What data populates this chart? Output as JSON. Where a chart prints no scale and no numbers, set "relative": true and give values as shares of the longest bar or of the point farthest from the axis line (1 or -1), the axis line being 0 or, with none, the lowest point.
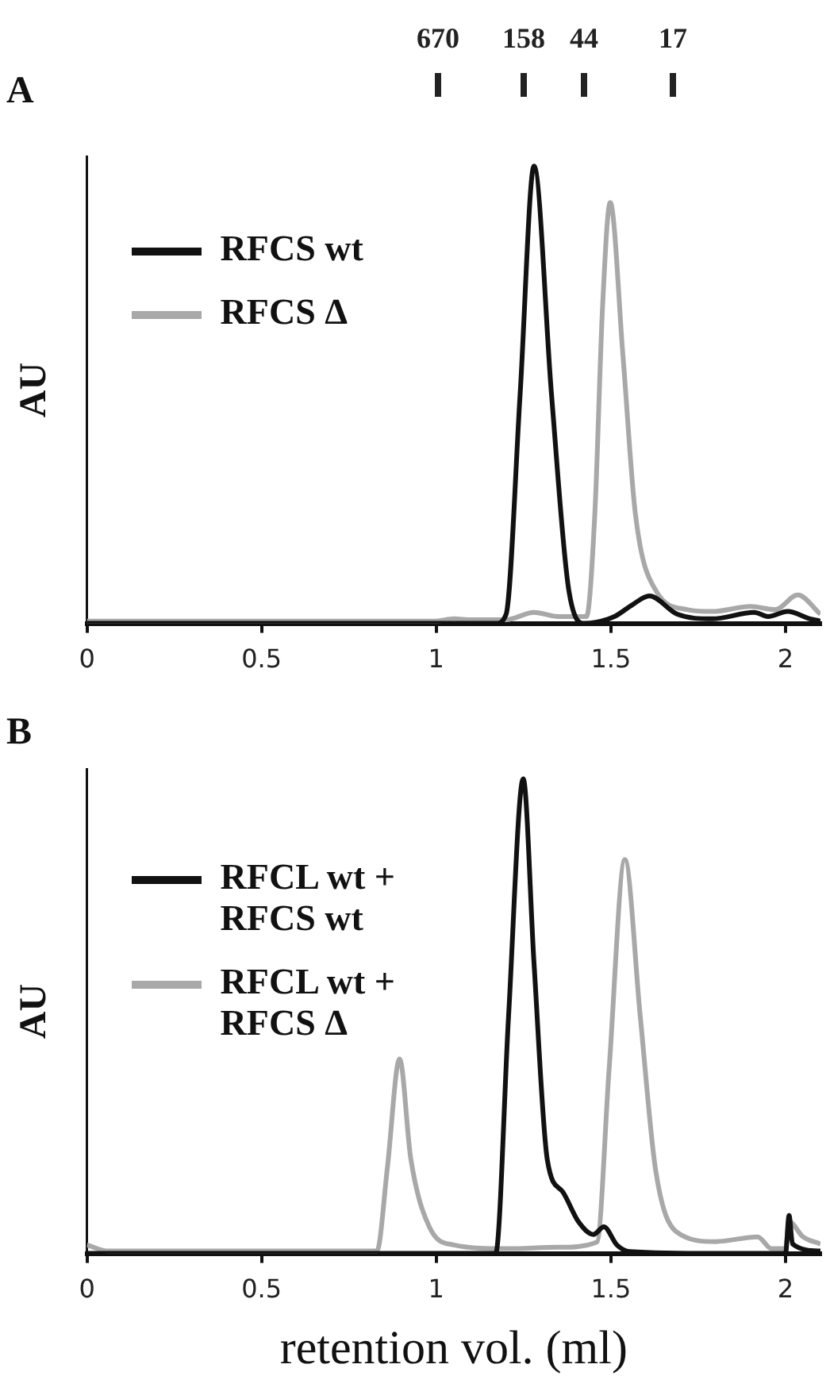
{
  "chart_data": [
    {
      "type": "line",
      "title": "A",
      "ylabel": "AU",
      "relative": true,
      "marker": "none",
      "legend": "top left",
      "xlim": [
        0,
        2.1
      ],
      "xticks": [
        0,
        0.5,
        1,
        1.5,
        2
      ],
      "annotations": [
        "670",
        "158",
        "44",
        "17"
      ],
      "series": [
        {
          "name": "RFCS wt",
          "color": "#111111",
          "x": [
            0,
            0.5,
            1.0,
            1.17,
            1.2,
            1.24,
            1.28,
            1.33,
            1.38,
            1.425,
            1.51,
            1.56,
            1.61,
            1.69,
            1.79,
            1.91,
            1.95,
            2.006,
            2.07,
            2.1
          ],
          "values": [
            0,
            0,
            0,
            0,
            0.02,
            0.5,
            1,
            0.5,
            0.07,
            0,
            0.015,
            0.04,
            0.06,
            0.02,
            0.01,
            0.024,
            0.015,
            0.026,
            0.01,
            0.005
          ]
        },
        {
          "name": "RFCS Δ",
          "color": "#a8a8a8",
          "x": [
            0,
            0.5,
            1.0,
            1.05,
            1.1,
            1.2,
            1.28,
            1.35,
            1.43,
            1.454,
            1.476,
            1.498,
            1.535,
            1.57,
            1.63,
            1.72,
            1.79,
            1.9,
            1.97,
            2.035,
            2.1
          ],
          "values": [
            0.005,
            0.005,
            0.005,
            0.01,
            0.008,
            0.008,
            0.024,
            0.015,
            0.015,
            0.24,
            0.69,
            0.92,
            0.58,
            0.24,
            0.07,
            0.03,
            0.026,
            0.037,
            0.03,
            0.062,
            0.02
          ]
        }
      ]
    },
    {
      "type": "line",
      "title": "B",
      "ylabel": "AU",
      "xlabel": "retention vol. (ml)",
      "relative": true,
      "marker": "none",
      "legend": "top left",
      "xlim": [
        0,
        2.1
      ],
      "xticks": [
        0,
        0.5,
        1,
        1.5,
        2
      ],
      "series": [
        {
          "name": "RFCL wt + RFCS wt",
          "color": "#111111",
          "x": [
            0,
            0.5,
            1.0,
            1.17,
            1.207,
            1.249,
            1.28,
            1.318,
            1.362,
            1.407,
            1.45,
            1.48,
            1.517,
            1.554,
            1.8,
            2.0,
            2.01,
            2.02,
            2.1
          ],
          "values": [
            0,
            0,
            0,
            0,
            0.5,
            1,
            0.61,
            0.197,
            0.13,
            0.067,
            0.04,
            0.056,
            0.018,
            0.004,
            0,
            0,
            0.08,
            0.02,
            0.005
          ]
        },
        {
          "name": "RFCL wt + RFCS Δ",
          "color": "#a8a8a8",
          "x": [
            0,
            0.06,
            0.5,
            0.83,
            0.86,
            0.895,
            0.927,
            0.98,
            1.05,
            1.2,
            1.35,
            1.46,
            1.495,
            1.54,
            1.584,
            1.628,
            1.687,
            1.8,
            1.92,
            1.96,
            2.0,
            2.01,
            2.05,
            2.1
          ],
          "values": [
            0.018,
            0.005,
            0.005,
            0.005,
            0.18,
            0.41,
            0.2,
            0.056,
            0.018,
            0.01,
            0.013,
            0.024,
            0.39,
            0.83,
            0.5,
            0.176,
            0.046,
            0.025,
            0.035,
            0.01,
            0.01,
            0.067,
            0.035,
            0.02
          ]
        }
      ]
    }
  ]
}
